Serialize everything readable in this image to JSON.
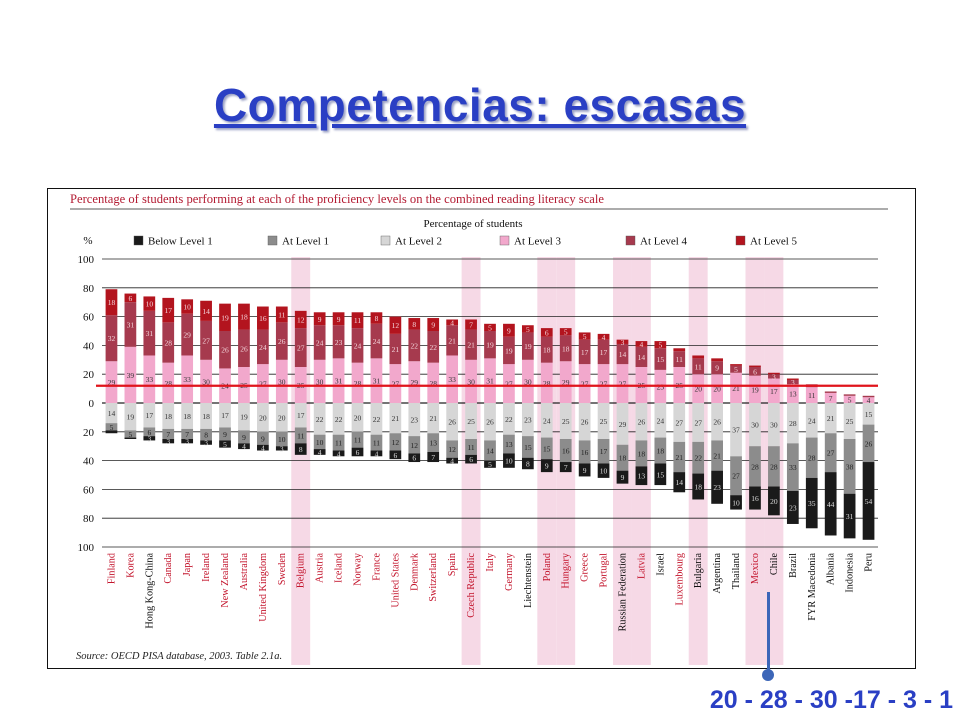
{
  "slide": {
    "title": "Competencias: escasas",
    "caption": "20 - 28 - 30 -17 - 3 - 1"
  },
  "chart_data": {
    "type": "bar",
    "stacked": "diverging",
    "title": "Percentage of students performing at each of the proficiency levels on the combined reading literacy scale",
    "ylabel": "%",
    "axis_header": "Percentage of students",
    "ylim": [
      -100,
      100
    ],
    "yticks": [
      100,
      80,
      60,
      40,
      20,
      0,
      20,
      40,
      60,
      80,
      100
    ],
    "source": "Source: OECD PISA database, 2003. Table 2.1a.",
    "grid": true,
    "legend_position": "top",
    "threshold_line_value": 12,
    "threshold_line_color": "#e0141c",
    "colors": {
      "below_level_1": "#1a1a1a",
      "level_1": "#8c8c8c",
      "level_2": "#d6d6d6",
      "level_3": "#f2a8cc",
      "level_4": "#a63a4e",
      "level_5": "#b3141e",
      "title_text": "#b31b32",
      "highlight_band": "#f6d9e6"
    },
    "series": [
      {
        "name": "Below Level 1",
        "key": "below_level_1",
        "direction": "down"
      },
      {
        "name": "At Level 1",
        "key": "level_1",
        "direction": "down"
      },
      {
        "name": "At Level 2",
        "key": "level_2",
        "direction": "down"
      },
      {
        "name": "At Level 3",
        "key": "level_3",
        "direction": "up"
      },
      {
        "name": "At Level 4",
        "key": "level_4",
        "direction": "up"
      },
      {
        "name": "At Level 5",
        "key": "level_5",
        "direction": "up"
      }
    ],
    "countries": [
      {
        "name": "Finland",
        "color": "red",
        "hl": false,
        "v": [
          2,
          5,
          14,
          29,
          32,
          18
        ]
      },
      {
        "name": "Korea",
        "color": "red",
        "hl": false,
        "v": [
          1,
          5,
          19,
          39,
          31,
          6
        ]
      },
      {
        "name": "Hong Kong-China",
        "color": "black",
        "hl": false,
        "v": [
          3,
          6,
          17,
          33,
          31,
          10
        ]
      },
      {
        "name": "Canada",
        "color": "red",
        "hl": false,
        "v": [
          3,
          7,
          18,
          28,
          28,
          17
        ]
      },
      {
        "name": "Japan",
        "color": "red",
        "hl": false,
        "v": [
          3,
          7,
          18,
          33,
          29,
          10
        ]
      },
      {
        "name": "Ireland",
        "color": "red",
        "hl": false,
        "v": [
          3,
          8,
          18,
          30,
          27,
          14
        ]
      },
      {
        "name": "New Zealand",
        "color": "red",
        "hl": false,
        "v": [
          5,
          9,
          17,
          24,
          26,
          19
        ]
      },
      {
        "name": "Australia",
        "color": "red",
        "hl": false,
        "v": [
          4,
          9,
          19,
          25,
          26,
          18
        ]
      },
      {
        "name": "United Kingdom",
        "color": "red",
        "hl": false,
        "v": [
          4,
          9,
          20,
          27,
          24,
          16
        ]
      },
      {
        "name": "Sweden",
        "color": "red",
        "hl": false,
        "v": [
          3,
          10,
          20,
          30,
          26,
          11
        ]
      },
      {
        "name": "Belgium",
        "color": "red",
        "hl": true,
        "v": [
          8,
          11,
          17,
          25,
          27,
          12
        ]
      },
      {
        "name": "Austria",
        "color": "red",
        "hl": false,
        "v": [
          4,
          10,
          22,
          30,
          24,
          9
        ]
      },
      {
        "name": "Iceland",
        "color": "red",
        "hl": false,
        "v": [
          4,
          11,
          22,
          31,
          23,
          9
        ]
      },
      {
        "name": "Norway",
        "color": "red",
        "hl": false,
        "v": [
          6,
          11,
          20,
          28,
          24,
          11
        ]
      },
      {
        "name": "France",
        "color": "red",
        "hl": false,
        "v": [
          4,
          11,
          22,
          31,
          24,
          8
        ]
      },
      {
        "name": "United States",
        "color": "red",
        "hl": false,
        "v": [
          6,
          12,
          21,
          27,
          21,
          12
        ]
      },
      {
        "name": "Denmark",
        "color": "red",
        "hl": false,
        "v": [
          6,
          12,
          23,
          29,
          22,
          8
        ]
      },
      {
        "name": "Switzerland",
        "color": "red",
        "hl": false,
        "v": [
          7,
          13,
          21,
          28,
          22,
          9
        ]
      },
      {
        "name": "Spain",
        "color": "red",
        "hl": false,
        "v": [
          4,
          12,
          26,
          33,
          21,
          4
        ]
      },
      {
        "name": "Czech Republic",
        "color": "red",
        "hl": true,
        "v": [
          6,
          11,
          25,
          30,
          21,
          7
        ]
      },
      {
        "name": "Italy",
        "color": "red",
        "hl": false,
        "v": [
          5,
          14,
          26,
          31,
          19,
          5
        ]
      },
      {
        "name": "Germany",
        "color": "red",
        "hl": false,
        "v": [
          10,
          13,
          22,
          27,
          19,
          9
        ]
      },
      {
        "name": "Liechtenstein",
        "color": "black",
        "hl": false,
        "v": [
          8,
          15,
          23,
          30,
          19,
          5
        ]
      },
      {
        "name": "Poland",
        "color": "red",
        "hl": true,
        "v": [
          9,
          15,
          24,
          28,
          18,
          6
        ]
      },
      {
        "name": "Hungary",
        "color": "red",
        "hl": true,
        "v": [
          7,
          16,
          25,
          29,
          18,
          5
        ]
      },
      {
        "name": "Greece",
        "color": "red",
        "hl": false,
        "v": [
          9,
          16,
          26,
          27,
          17,
          5
        ]
      },
      {
        "name": "Portugal",
        "color": "red",
        "hl": false,
        "v": [
          10,
          17,
          25,
          27,
          17,
          4
        ]
      },
      {
        "name": "Russian Federation",
        "color": "black",
        "hl": true,
        "v": [
          9,
          18,
          29,
          27,
          14,
          3
        ]
      },
      {
        "name": "Latvia",
        "color": "red",
        "hl": true,
        "v": [
          13,
          18,
          26,
          25,
          14,
          4
        ]
      },
      {
        "name": "Israel",
        "color": "black",
        "hl": false,
        "v": [
          15,
          18,
          24,
          23,
          15,
          5
        ]
      },
      {
        "name": "Luxembourg",
        "color": "red",
        "hl": false,
        "v": [
          14,
          21,
          27,
          25,
          11,
          2
        ]
      },
      {
        "name": "Bulgaria",
        "color": "black",
        "hl": true,
        "v": [
          18,
          22,
          27,
          20,
          11,
          2
        ]
      },
      {
        "name": "Argentina",
        "color": "black",
        "hl": false,
        "v": [
          23,
          21,
          26,
          20,
          9,
          2
        ]
      },
      {
        "name": "Thailand",
        "color": "black",
        "hl": false,
        "v": [
          10,
          27,
          37,
          21,
          5,
          1
        ]
      },
      {
        "name": "Mexico",
        "color": "red",
        "hl": true,
        "v": [
          16,
          28,
          30,
          19,
          6,
          1
        ]
      },
      {
        "name": "Chile",
        "color": "black",
        "hl": true,
        "v": [
          20,
          28,
          30,
          17,
          3,
          1
        ]
      },
      {
        "name": "Brazil",
        "color": "black",
        "hl": false,
        "v": [
          23,
          33,
          28,
          13,
          3,
          1
        ]
      },
      {
        "name": "FYR Macedonia",
        "color": "black",
        "hl": false,
        "v": [
          35,
          28,
          24,
          11,
          2,
          0
        ]
      },
      {
        "name": "Albania",
        "color": "black",
        "hl": false,
        "v": [
          44,
          27,
          21,
          7,
          1,
          0
        ]
      },
      {
        "name": "Indonesia",
        "color": "black",
        "hl": false,
        "v": [
          31,
          38,
          25,
          5,
          1,
          0
        ]
      },
      {
        "name": "Peru",
        "color": "black",
        "hl": false,
        "v": [
          54,
          26,
          15,
          4,
          1,
          0
        ]
      }
    ]
  }
}
